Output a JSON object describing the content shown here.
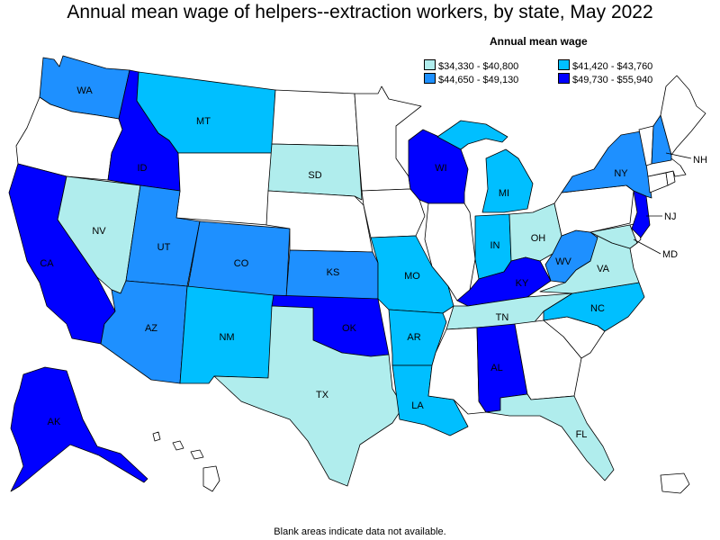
{
  "title": "Annual mean wage of helpers--extraction workers, by state, May 2022",
  "legend": {
    "title": "Annual mean wage",
    "items": [
      {
        "label": "$34,330 - $40,800",
        "color": "#b0eded"
      },
      {
        "label": "$41,420 - $43,760",
        "color": "#00bfff"
      },
      {
        "label": "$44,650 - $49,130",
        "color": "#1e90ff"
      },
      {
        "label": "$49,730 - $55,940",
        "color": "#0000ff"
      }
    ]
  },
  "footnote": "Blank areas indicate data not available.",
  "no_data_color": "#ffffff",
  "states": [
    {
      "abbr": "WA",
      "class": 2
    },
    {
      "abbr": "OR",
      "class": null
    },
    {
      "abbr": "CA",
      "class": 3
    },
    {
      "abbr": "NV",
      "class": 0
    },
    {
      "abbr": "ID",
      "class": 3
    },
    {
      "abbr": "MT",
      "class": 1
    },
    {
      "abbr": "WY",
      "class": null
    },
    {
      "abbr": "UT",
      "class": 2
    },
    {
      "abbr": "AZ",
      "class": 2
    },
    {
      "abbr": "CO",
      "class": 2
    },
    {
      "abbr": "NM",
      "class": 1
    },
    {
      "abbr": "ND",
      "class": null
    },
    {
      "abbr": "SD",
      "class": 0
    },
    {
      "abbr": "NE",
      "class": null
    },
    {
      "abbr": "KS",
      "class": 2
    },
    {
      "abbr": "OK",
      "class": 3
    },
    {
      "abbr": "TX",
      "class": 0
    },
    {
      "abbr": "MN",
      "class": null
    },
    {
      "abbr": "IA",
      "class": null
    },
    {
      "abbr": "MO",
      "class": 1
    },
    {
      "abbr": "AR",
      "class": 1
    },
    {
      "abbr": "LA",
      "class": 1
    },
    {
      "abbr": "WI",
      "class": 3
    },
    {
      "abbr": "IL",
      "class": null
    },
    {
      "abbr": "MI",
      "class": 1
    },
    {
      "abbr": "IN",
      "class": 1
    },
    {
      "abbr": "OH",
      "class": 0
    },
    {
      "abbr": "KY",
      "class": 3
    },
    {
      "abbr": "TN",
      "class": 0
    },
    {
      "abbr": "MS",
      "class": null
    },
    {
      "abbr": "AL",
      "class": 3
    },
    {
      "abbr": "GA",
      "class": null
    },
    {
      "abbr": "FL",
      "class": 0
    },
    {
      "abbr": "SC",
      "class": null
    },
    {
      "abbr": "NC",
      "class": 1
    },
    {
      "abbr": "VA",
      "class": 0
    },
    {
      "abbr": "WV",
      "class": 2
    },
    {
      "abbr": "MD",
      "class": 0
    },
    {
      "abbr": "DE",
      "class": null
    },
    {
      "abbr": "PA",
      "class": null
    },
    {
      "abbr": "NJ",
      "class": 3
    },
    {
      "abbr": "NY",
      "class": 2
    },
    {
      "abbr": "CT",
      "class": null
    },
    {
      "abbr": "RI",
      "class": null
    },
    {
      "abbr": "MA",
      "class": null
    },
    {
      "abbr": "VT",
      "class": null
    },
    {
      "abbr": "NH",
      "class": 2
    },
    {
      "abbr": "ME",
      "class": null
    },
    {
      "abbr": "AK",
      "class": 3
    },
    {
      "abbr": "HI",
      "class": null
    },
    {
      "abbr": "PR",
      "class": null
    }
  ]
}
